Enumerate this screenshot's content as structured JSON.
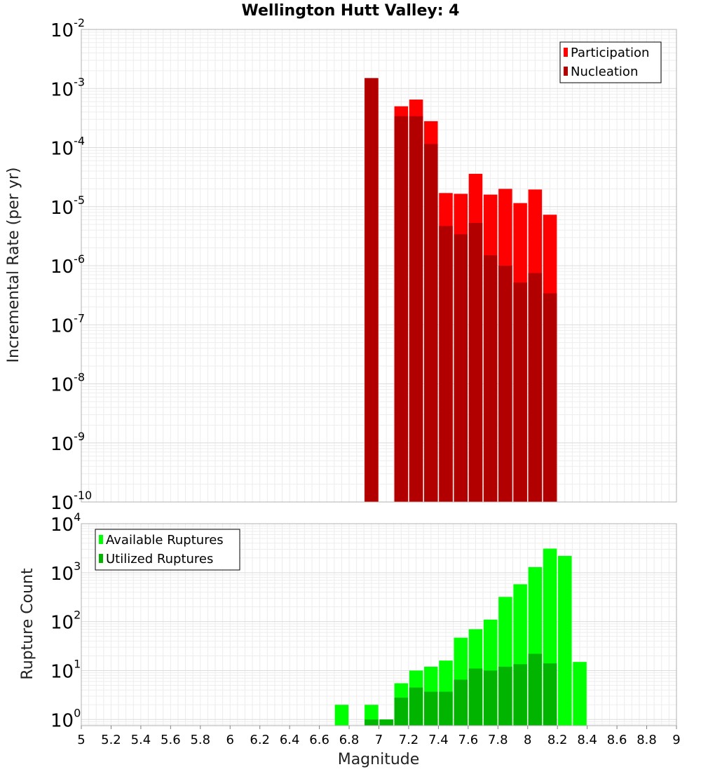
{
  "chart_data": [
    {
      "type": "bar",
      "title": "Wellington Hutt Valley: 4",
      "ylabel": "Incremental Rate (per yr)",
      "xlabel": "",
      "xlim": [
        5,
        9
      ],
      "ylim": [
        1e-10,
        0.01
      ],
      "yscale": "log",
      "grid": true,
      "legend_position": "top-right",
      "series": [
        {
          "name": "Participation",
          "color": "#ff0000",
          "x": [
            6.95,
            7.15,
            7.25,
            7.35,
            7.45,
            7.55,
            7.65,
            7.75,
            7.85,
            7.95,
            8.05,
            8.15
          ],
          "values": [
            0.0015,
            0.0005,
            0.00065,
            0.00028,
            1.7e-05,
            1.65e-05,
            3.6e-05,
            1.6e-05,
            2e-05,
            1.15e-05,
            1.95e-05,
            7.3e-06
          ]
        },
        {
          "name": "Nucleation",
          "color": "#b20000",
          "x": [
            6.95,
            7.15,
            7.25,
            7.35,
            7.45,
            7.55,
            7.65,
            7.75,
            7.85,
            7.95,
            8.05,
            8.15
          ],
          "values": [
            0.0015,
            0.00034,
            0.00034,
            0.000115,
            4.7e-06,
            3.4e-06,
            5.3e-06,
            1.5e-06,
            1e-06,
            5.2e-07,
            7.5e-07,
            3.4e-07
          ]
        }
      ]
    },
    {
      "type": "bar",
      "title": "",
      "ylabel": "Rupture Count",
      "xlabel": "Magnitude",
      "xlim": [
        5,
        9
      ],
      "ylim": [
        0.75,
        10000
      ],
      "yscale": "log",
      "grid": true,
      "legend_position": "top-left",
      "series": [
        {
          "name": "Available Ruptures",
          "color": "#00ff00",
          "x": [
            6.75,
            6.95,
            7.05,
            7.15,
            7.25,
            7.35,
            7.45,
            7.55,
            7.65,
            7.75,
            7.85,
            7.95,
            8.05,
            8.15,
            8.25,
            8.35
          ],
          "values": [
            2,
            2,
            1,
            5.5,
            10,
            12,
            16,
            47,
            70,
            110,
            320,
            580,
            1300,
            3100,
            2200,
            15
          ]
        },
        {
          "name": "Utilized Ruptures",
          "color": "#00b400",
          "x": [
            6.95,
            7.05,
            7.15,
            7.25,
            7.35,
            7.45,
            7.55,
            7.65,
            7.75,
            7.85,
            7.95,
            8.05,
            8.15
          ],
          "values": [
            1,
            1,
            2.8,
            4.5,
            3.7,
            3.7,
            6.5,
            11,
            10,
            12,
            13.5,
            22,
            14
          ]
        }
      ]
    }
  ],
  "x_ticks": [
    "5",
    "5.2",
    "5.4",
    "5.6",
    "5.8",
    "6",
    "6.2",
    "6.4",
    "6.6",
    "6.8",
    "7",
    "7.2",
    "7.4",
    "7.6",
    "7.8",
    "8",
    "8.2",
    "8.4",
    "8.6",
    "8.8",
    "9"
  ],
  "top_y_ticks": [
    {
      "base": "10",
      "exp": "-2"
    },
    {
      "base": "10",
      "exp": "-3"
    },
    {
      "base": "10",
      "exp": "-4"
    },
    {
      "base": "10",
      "exp": "-5"
    },
    {
      "base": "10",
      "exp": "-6"
    },
    {
      "base": "10",
      "exp": "-7"
    },
    {
      "base": "10",
      "exp": "-8"
    },
    {
      "base": "10",
      "exp": "-9"
    },
    {
      "base": "10",
      "exp": "-10"
    }
  ],
  "bottom_y_ticks": [
    {
      "base": "10",
      "exp": "4"
    },
    {
      "base": "10",
      "exp": "3"
    },
    {
      "base": "10",
      "exp": "2"
    },
    {
      "base": "10",
      "exp": "1"
    },
    {
      "base": "10",
      "exp": "0"
    }
  ]
}
